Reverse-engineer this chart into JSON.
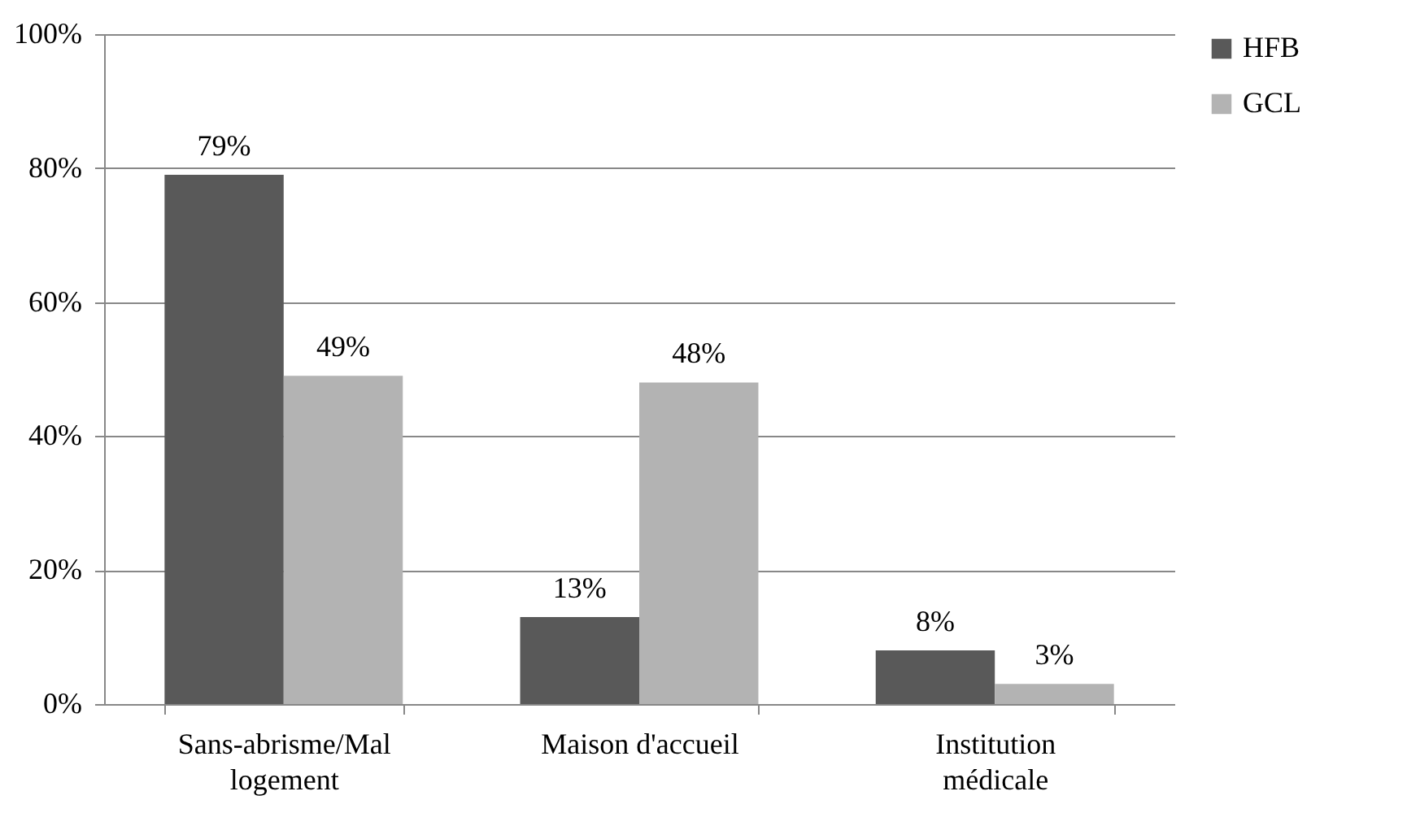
{
  "chart_data": {
    "type": "bar",
    "categories": [
      "Sans-abrisme/Mal logement",
      "Maison d'accueil",
      "Institution médicale"
    ],
    "series": [
      {
        "name": "HFB",
        "color": "#595959",
        "values": [
          79,
          13,
          8
        ],
        "value_labels": [
          "79%",
          "13%",
          "8%"
        ]
      },
      {
        "name": "GCL",
        "color": "#b3b3b3",
        "values": [
          49,
          48,
          3
        ],
        "value_labels": [
          "49%",
          "48%",
          "3%"
        ]
      }
    ],
    "ylim": [
      0,
      100
    ],
    "yticks": [
      {
        "value": 0,
        "label": "0%"
      },
      {
        "value": 20,
        "label": "20%"
      },
      {
        "value": 40,
        "label": "40%"
      },
      {
        "value": 60,
        "label": "60%"
      },
      {
        "value": 80,
        "label": "80%"
      },
      {
        "value": 100,
        "label": "100%"
      }
    ],
    "grid": "y",
    "legend": "right"
  }
}
